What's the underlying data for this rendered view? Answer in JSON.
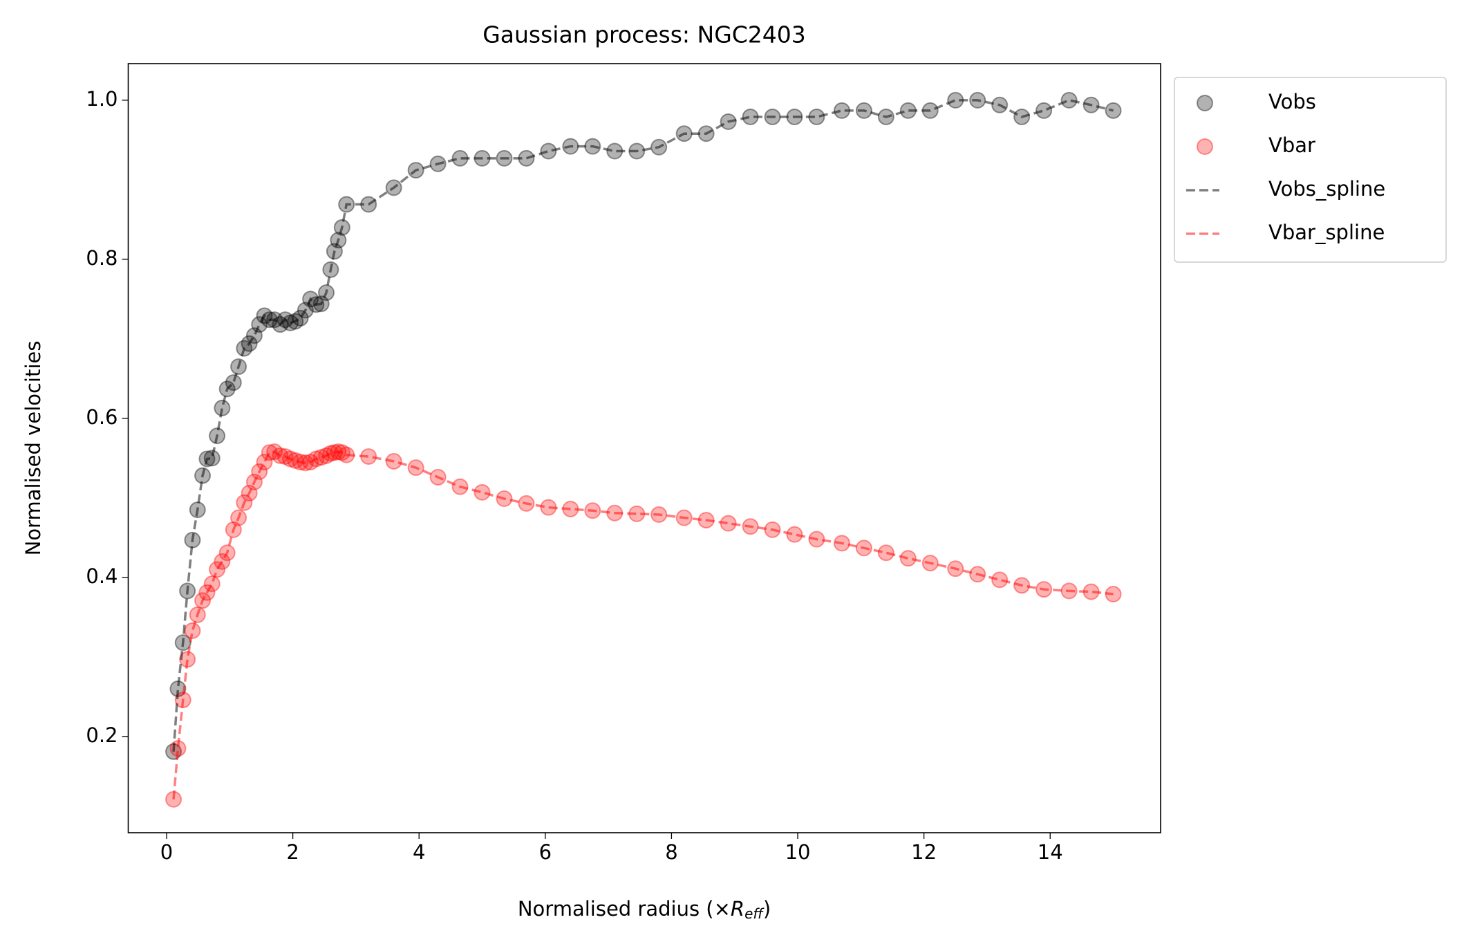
{
  "chart_data": {
    "type": "scatter-line",
    "title": "Gaussian process: NGC2403",
    "xlabel": {
      "text": "Normalised radius (×",
      "symbol": "R",
      "subscript": "eff",
      "close": ")"
    },
    "ylabel": "Normalised velocities",
    "xlim": [
      -0.608,
      15.75
    ],
    "ylim": [
      0.079,
      1.046
    ],
    "xticks": [
      0,
      2,
      4,
      6,
      8,
      10,
      12,
      14
    ],
    "yticks": [
      0.2,
      0.4,
      0.6,
      0.8,
      {
        "value": 1,
        "label": "1.0"
      }
    ],
    "legend": "upper-right-outside",
    "x": [
      0.11,
      0.18,
      0.26,
      0.33,
      0.41,
      0.49,
      0.57,
      0.64,
      0.72,
      0.8,
      0.88,
      0.96,
      1.06,
      1.14,
      1.23,
      1.31,
      1.39,
      1.47,
      1.55,
      1.63,
      1.71,
      1.8,
      1.88,
      1.96,
      2.04,
      2.12,
      2.2,
      2.28,
      2.37,
      2.45,
      2.53,
      2.6,
      2.66,
      2.72,
      2.78,
      2.85,
      3.2,
      3.6,
      3.95,
      4.3,
      4.65,
      5.0,
      5.35,
      5.7,
      6.05,
      6.4,
      6.75,
      7.1,
      7.45,
      7.8,
      8.2,
      8.55,
      8.9,
      9.25,
      9.6,
      9.95,
      10.3,
      10.7,
      11.05,
      11.4,
      11.75,
      12.1,
      12.5,
      12.85,
      13.2,
      13.55,
      13.9,
      14.3,
      14.65,
      15.0
    ],
    "series": [
      {
        "name": "Vobs",
        "type": "scatter",
        "color": "#000000",
        "alpha": 0.3,
        "values": [
          0.181,
          0.26,
          0.318,
          0.383,
          0.447,
          0.485,
          0.528,
          0.549,
          0.55,
          0.578,
          0.613,
          0.637,
          0.645,
          0.665,
          0.688,
          0.694,
          0.704,
          0.718,
          0.729,
          0.724,
          0.724,
          0.718,
          0.724,
          0.72,
          0.722,
          0.726,
          0.736,
          0.75,
          0.743,
          0.744,
          0.758,
          0.787,
          0.81,
          0.824,
          0.84,
          0.869,
          0.869,
          0.89,
          0.912,
          0.92,
          0.927,
          0.927,
          0.927,
          0.927,
          0.936,
          0.942,
          0.942,
          0.936,
          0.936,
          0.941,
          0.958,
          0.958,
          0.973,
          0.979,
          0.979,
          0.979,
          0.979,
          0.987,
          0.987,
          0.979,
          0.987,
          0.987,
          1.0,
          1.0,
          0.994,
          0.979,
          0.987,
          1.0,
          0.994,
          0.987
        ]
      },
      {
        "name": "Vbar",
        "type": "scatter",
        "color": "#ff0000",
        "alpha": 0.3,
        "values": [
          0.121,
          0.185,
          0.246,
          0.297,
          0.333,
          0.353,
          0.371,
          0.381,
          0.392,
          0.41,
          0.42,
          0.431,
          0.46,
          0.475,
          0.494,
          0.506,
          0.52,
          0.533,
          0.545,
          0.557,
          0.558,
          0.553,
          0.552,
          0.549,
          0.547,
          0.545,
          0.544,
          0.545,
          0.549,
          0.551,
          0.553,
          0.556,
          0.557,
          0.558,
          0.557,
          0.554,
          0.552,
          0.546,
          0.538,
          0.526,
          0.514,
          0.507,
          0.499,
          0.493,
          0.488,
          0.486,
          0.484,
          0.481,
          0.48,
          0.479,
          0.475,
          0.472,
          0.468,
          0.464,
          0.46,
          0.454,
          0.448,
          0.443,
          0.437,
          0.431,
          0.424,
          0.418,
          0.411,
          0.404,
          0.397,
          0.39,
          0.385,
          0.383,
          0.382,
          0.379
        ]
      },
      {
        "name": "Vobs_spline",
        "type": "line",
        "color": "#000000",
        "alpha": 0.5,
        "values": [
          0.181,
          0.26,
          0.318,
          0.383,
          0.447,
          0.485,
          0.528,
          0.549,
          0.55,
          0.578,
          0.613,
          0.637,
          0.645,
          0.665,
          0.688,
          0.694,
          0.704,
          0.718,
          0.729,
          0.724,
          0.724,
          0.718,
          0.724,
          0.72,
          0.722,
          0.726,
          0.736,
          0.75,
          0.743,
          0.744,
          0.758,
          0.787,
          0.81,
          0.824,
          0.84,
          0.869,
          0.869,
          0.89,
          0.912,
          0.92,
          0.927,
          0.927,
          0.927,
          0.927,
          0.936,
          0.942,
          0.942,
          0.936,
          0.936,
          0.941,
          0.958,
          0.958,
          0.973,
          0.979,
          0.979,
          0.979,
          0.979,
          0.987,
          0.987,
          0.979,
          0.987,
          0.987,
          1.0,
          1.0,
          0.994,
          0.979,
          0.987,
          1.0,
          0.994,
          0.987
        ]
      },
      {
        "name": "Vbar_spline",
        "type": "line",
        "color": "#ff0000",
        "alpha": 0.5,
        "values": [
          0.121,
          0.185,
          0.246,
          0.297,
          0.333,
          0.353,
          0.371,
          0.381,
          0.392,
          0.41,
          0.42,
          0.431,
          0.46,
          0.475,
          0.494,
          0.506,
          0.52,
          0.533,
          0.545,
          0.557,
          0.558,
          0.553,
          0.552,
          0.549,
          0.547,
          0.545,
          0.544,
          0.545,
          0.549,
          0.551,
          0.553,
          0.556,
          0.557,
          0.558,
          0.557,
          0.554,
          0.552,
          0.546,
          0.538,
          0.526,
          0.514,
          0.507,
          0.499,
          0.493,
          0.488,
          0.486,
          0.484,
          0.481,
          0.48,
          0.479,
          0.475,
          0.472,
          0.468,
          0.464,
          0.46,
          0.454,
          0.448,
          0.443,
          0.437,
          0.431,
          0.424,
          0.418,
          0.411,
          0.404,
          0.397,
          0.39,
          0.385,
          0.383,
          0.382,
          0.379
        ]
      }
    ]
  }
}
